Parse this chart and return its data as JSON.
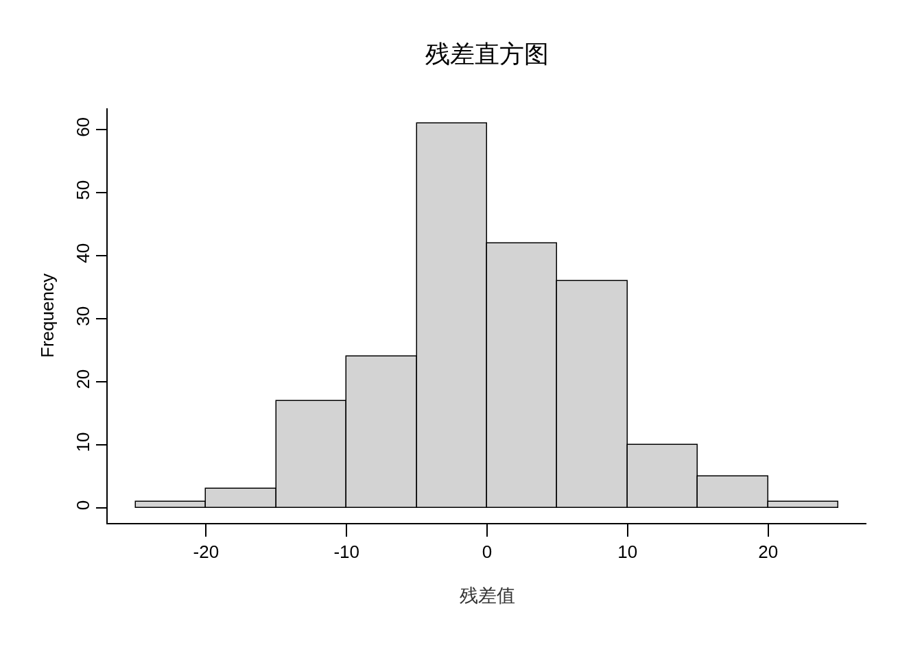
{
  "chart_data": {
    "type": "histogram",
    "title": "残差直方图",
    "xlabel": "残差值",
    "ylabel": "Frequency",
    "bins": [
      -25,
      -20,
      -15,
      -10,
      -5,
      0,
      5,
      10,
      15,
      20,
      25
    ],
    "values": [
      1,
      3,
      17,
      24,
      61,
      42,
      36,
      10,
      5,
      1
    ],
    "color": "#d3d3d3",
    "xlim": [
      -27,
      27
    ],
    "xticks": [
      -20,
      -10,
      0,
      10,
      20
    ],
    "ylim": [
      -2.4,
      63.4
    ],
    "yticks": [
      0,
      10,
      20,
      30,
      40,
      50,
      60
    ]
  }
}
